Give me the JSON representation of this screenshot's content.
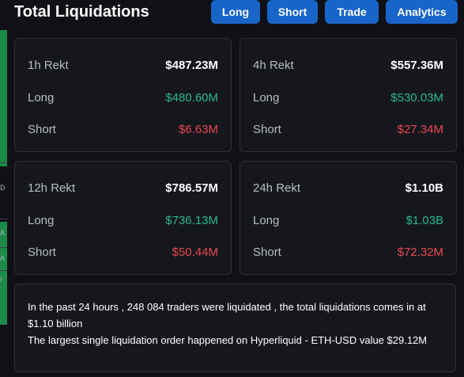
{
  "header": {
    "title": "Total Liquidations",
    "tabs": [
      "Long",
      "Short",
      "Trade",
      "Analytics"
    ]
  },
  "cards": [
    {
      "period": "1h Rekt",
      "total": "$487.23M",
      "long_label": "Long",
      "long": "$480.60M",
      "short_label": "Short",
      "short": "$6.63M"
    },
    {
      "period": "4h Rekt",
      "total": "$557.36M",
      "long_label": "Long",
      "long": "$530.03M",
      "short_label": "Short",
      "short": "$27.34M"
    },
    {
      "period": "12h Rekt",
      "total": "$786.57M",
      "long_label": "Long",
      "long": "$736.13M",
      "short_label": "Short",
      "short": "$50.44M"
    },
    {
      "period": "24h Rekt",
      "total": "$1.10B",
      "long_label": "Long",
      "long": "$1.03B",
      "short_label": "Short",
      "short": "$72.32M"
    }
  ],
  "summary": {
    "line1": "In the past 24 hours , 248 084 traders were liquidated , the total liquidations comes in at $1.10 billion",
    "line2": "The largest single liquidation order happened on Hyperliquid - ETH-USD value $29.12M"
  },
  "left_strip": {
    "glyphs": [
      "D",
      "A",
      "A",
      "I"
    ]
  },
  "colors": {
    "accent": "#1865c9",
    "positive": "#2bb88a",
    "negative": "#e8474e",
    "background": "#101116",
    "card": "#15171d"
  }
}
